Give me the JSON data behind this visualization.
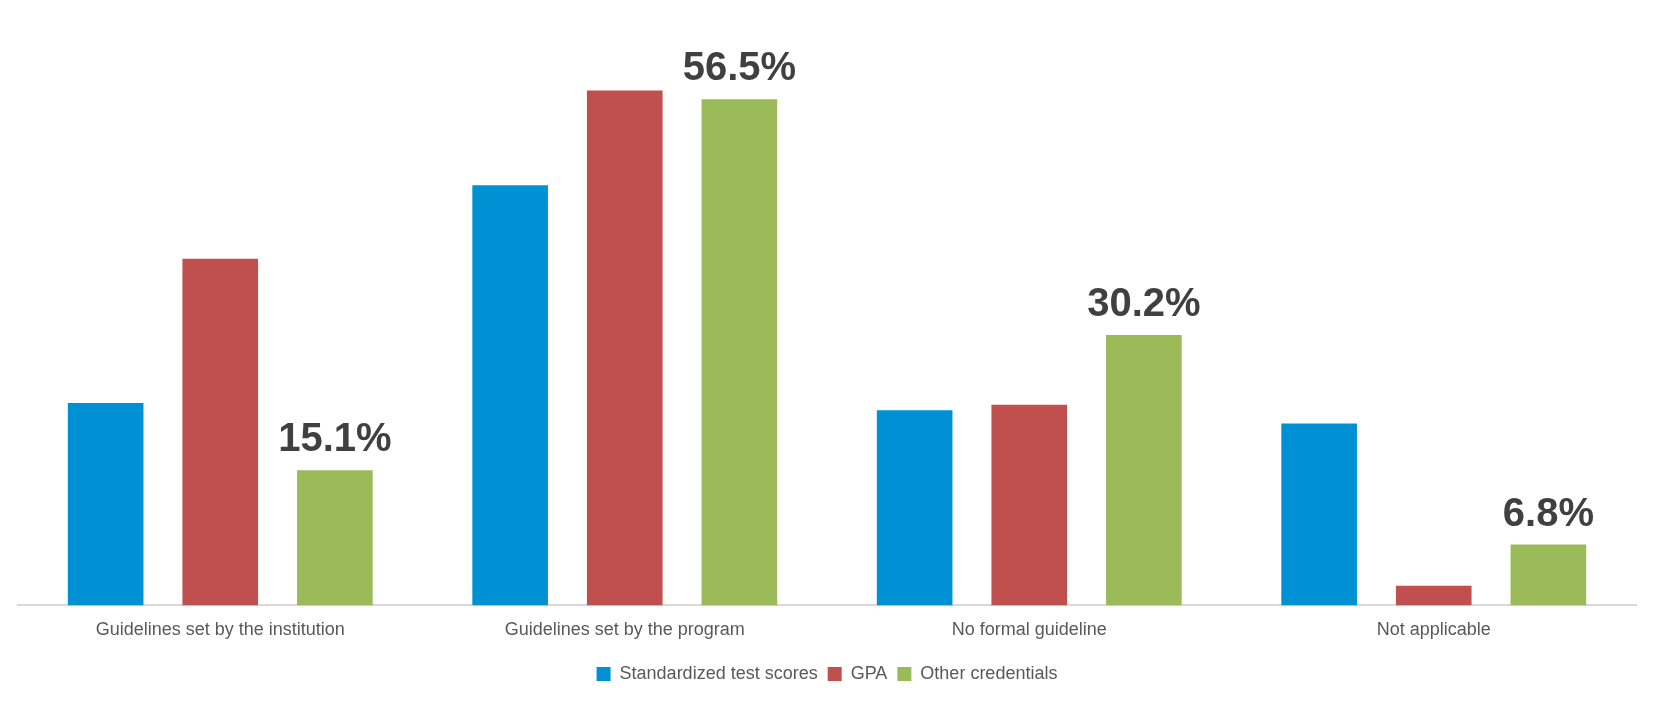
{
  "chart_data": {
    "type": "bar",
    "categories": [
      "Guidelines set by the institution",
      "Guidelines set by the program",
      "No formal guideline",
      "Not applicable"
    ],
    "series": [
      {
        "name": "Standardized test scores",
        "color": "#0091d5",
        "values": [
          22.6,
          46.9,
          21.8,
          20.3
        ]
      },
      {
        "name": "GPA",
        "color": "#c0504d",
        "values": [
          38.7,
          57.5,
          22.4,
          2.2
        ]
      },
      {
        "name": "Other credentials",
        "color": "#9bbb59",
        "values": [
          15.1,
          56.5,
          30.2,
          6.8
        ],
        "value_labels": [
          "15.1%",
          "56.5%",
          "30.2%",
          "6.8%"
        ]
      }
    ],
    "grid": false,
    "legend": "bottom"
  }
}
